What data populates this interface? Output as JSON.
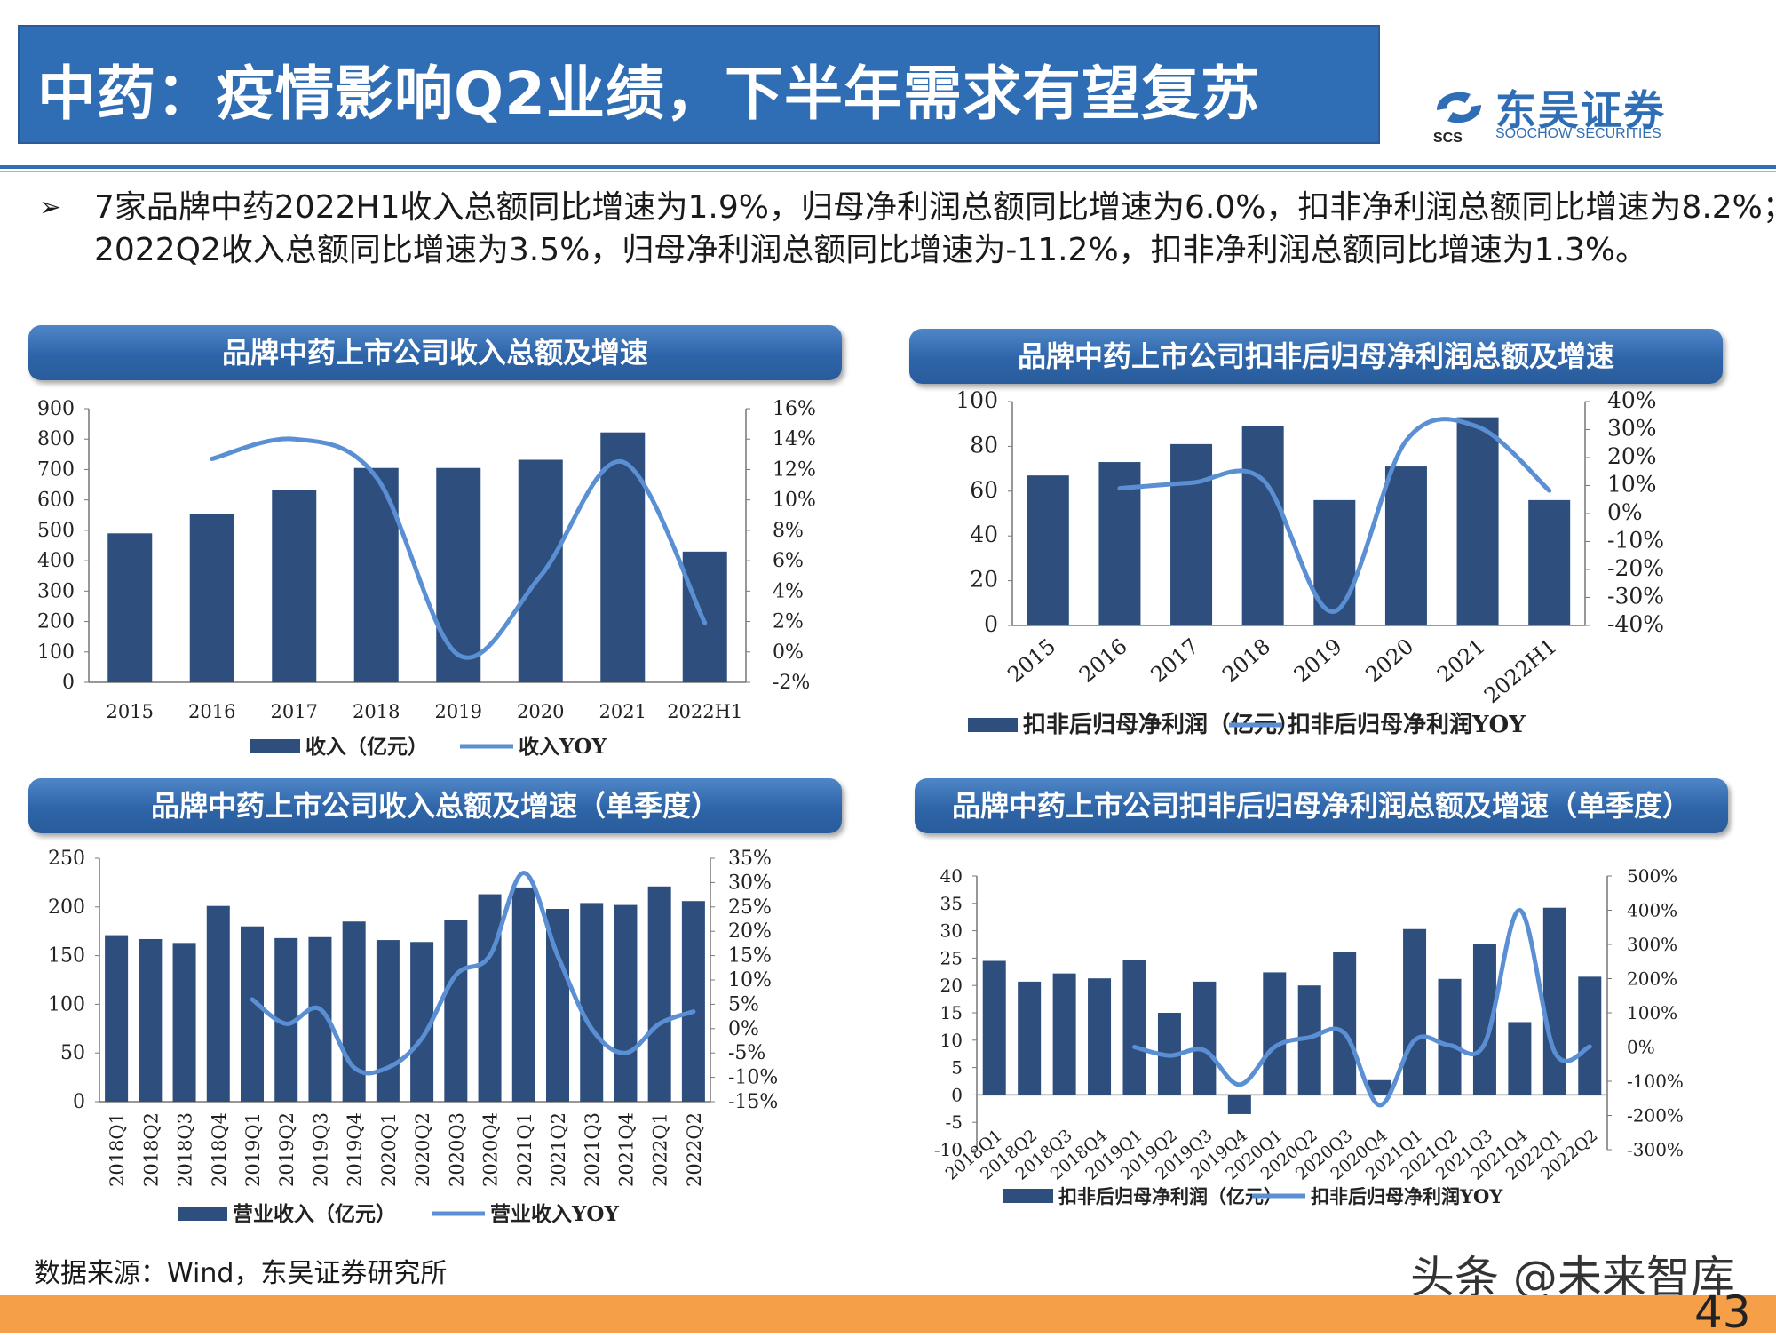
{
  "header": {
    "title": "中药：疫情影响Q2业绩，下半年需求有望复苏",
    "logo_cn": "东吴证券",
    "logo_en": "SOOCHOW SECURITIES",
    "logo_mark_text": "SCS"
  },
  "bullet": {
    "marker": "➢",
    "text": "7家品牌中药2022H1收入总额同比增速为1.9%，归母净利润总额同比增速为6.0%，扣非净利润总额同比增速为8.2%；2022Q2收入总额同比增速为3.5%，归母净利润总额同比增速为-11.2%，扣非净利润总额同比增速为1.3%。"
  },
  "panels": [
    {
      "title": "品牌中药上市公司收入总额及增速"
    },
    {
      "title": "品牌中药上市公司扣非后归母净利润总额及增速"
    },
    {
      "title": "品牌中药上市公司收入总额及增速（单季度）"
    },
    {
      "title": "品牌中药上市公司扣非后归母净利润总额及增速（单季度）"
    }
  ],
  "colors": {
    "bar": "#2e4e7e",
    "line": "#5b8fd3",
    "header": "#2f6db4",
    "footer": "#f5a049"
  },
  "chart_data": [
    {
      "type": "bar",
      "title": "品牌中药上市公司收入总额及增速",
      "categories": [
        "2015",
        "2016",
        "2017",
        "2018",
        "2019",
        "2020",
        "2021",
        "2022H1"
      ],
      "series": [
        {
          "name": "收入（亿元）",
          "type": "bar",
          "axis": "left",
          "values": [
            490,
            553,
            632,
            705,
            705,
            732,
            822,
            430
          ]
        },
        {
          "name": "收入YOY",
          "type": "line",
          "axis": "right",
          "values": [
            null,
            12.7,
            14.0,
            11.5,
            -0.2,
            5.0,
            12.5,
            1.9
          ]
        }
      ],
      "left_axis": {
        "min": 0,
        "max": 900,
        "ticks": [
          "0",
          "100",
          "200",
          "300",
          "400",
          "500",
          "600",
          "700",
          "800",
          "900"
        ]
      },
      "right_axis": {
        "min": -2,
        "max": 16,
        "ticks": [
          "-2%",
          "0%",
          "2%",
          "4%",
          "6%",
          "8%",
          "10%",
          "12%",
          "14%",
          "16%"
        ]
      },
      "legend": "bottom"
    },
    {
      "type": "bar",
      "title": "品牌中药上市公司扣非后归母净利润总额及增速",
      "categories": [
        "2015",
        "2016",
        "2017",
        "2018",
        "2019",
        "2020",
        "2021",
        "2022H1"
      ],
      "series": [
        {
          "name": "扣非后归母净利润（亿元）",
          "type": "bar",
          "axis": "left",
          "values": [
            67,
            73,
            81,
            89,
            56,
            71,
            93,
            56
          ]
        },
        {
          "name": "扣非后归母净利润YOY",
          "type": "line",
          "axis": "right",
          "values": [
            null,
            9,
            11,
            12,
            -35,
            26,
            31,
            8.2
          ]
        }
      ],
      "left_axis": {
        "min": 0,
        "max": 100,
        "ticks": [
          "0",
          "20",
          "40",
          "60",
          "80",
          "100"
        ]
      },
      "right_axis": {
        "min": -40,
        "max": 40,
        "ticks": [
          "-40%",
          "-30%",
          "-20%",
          "-10%",
          "0%",
          "10%",
          "20%",
          "30%",
          "40%"
        ]
      },
      "legend": "bottom"
    },
    {
      "type": "bar",
      "title": "品牌中药上市公司收入总额及增速（单季度）",
      "categories": [
        "2018Q1",
        "2018Q2",
        "2018Q3",
        "2018Q4",
        "2019Q1",
        "2019Q2",
        "2019Q3",
        "2019Q4",
        "2020Q1",
        "2020Q2",
        "2020Q3",
        "2020Q4",
        "2021Q1",
        "2021Q2",
        "2021Q3",
        "2021Q4",
        "2022Q1",
        "2022Q2"
      ],
      "series": [
        {
          "name": "营业收入（亿元）",
          "type": "bar",
          "axis": "left",
          "values": [
            171,
            167,
            163,
            201,
            180,
            168,
            169,
            185,
            166,
            164,
            187,
            213,
            220,
            198,
            204,
            202,
            221,
            206
          ]
        },
        {
          "name": "营业收入YOY",
          "type": "line",
          "axis": "right",
          "values": [
            null,
            null,
            null,
            null,
            6,
            1,
            4,
            -8,
            -8,
            -2,
            11,
            15,
            32,
            15,
            0,
            -5,
            1,
            3.5
          ]
        }
      ],
      "left_axis": {
        "min": 0,
        "max": 250,
        "ticks": [
          "0",
          "50",
          "100",
          "150",
          "200",
          "250"
        ]
      },
      "right_axis": {
        "min": -15,
        "max": 35,
        "ticks": [
          "-15%",
          "-10%",
          "-5%",
          "0%",
          "5%",
          "10%",
          "15%",
          "20%",
          "25%",
          "30%",
          "35%"
        ]
      },
      "legend": "bottom"
    },
    {
      "type": "bar",
      "title": "品牌中药上市公司扣非后归母净利润总额及增速（单季度）",
      "categories": [
        "2018Q1",
        "2018Q2",
        "2018Q3",
        "2018Q4",
        "2019Q1",
        "2019Q2",
        "2019Q3",
        "2019Q4",
        "2020Q1",
        "2020Q2",
        "2020Q3",
        "2020Q4",
        "2021Q1",
        "2021Q2",
        "2021Q3",
        "2021Q4",
        "2022Q1",
        "2022Q2"
      ],
      "series": [
        {
          "name": "扣非后归母净利润（亿元）",
          "type": "bar",
          "axis": "left",
          "values": [
            24.5,
            20.7,
            22.2,
            21.3,
            24.6,
            15.0,
            20.7,
            -3.5,
            22.4,
            20.0,
            26.2,
            2.7,
            30.3,
            21.2,
            27.5,
            13.3,
            34.2,
            21.6
          ]
        },
        {
          "name": "扣非后归母净利润YOY",
          "type": "line",
          "axis": "right",
          "values": [
            null,
            null,
            null,
            null,
            0,
            -25,
            -10,
            -110,
            0,
            28,
            40,
            -170,
            20,
            5,
            10,
            400,
            -15,
            1.3
          ]
        }
      ],
      "left_axis": {
        "min": -10,
        "max": 40,
        "ticks": [
          "-10",
          "-5",
          "0",
          "5",
          "10",
          "15",
          "20",
          "25",
          "30",
          "35",
          "40"
        ]
      },
      "right_axis": {
        "min": -300,
        "max": 500,
        "ticks": [
          "-300%",
          "-200%",
          "-100%",
          "0%",
          "100%",
          "200%",
          "300%",
          "400%",
          "500%"
        ]
      },
      "legend": "bottom"
    }
  ],
  "source": "数据来源：Wind，东吴证券研究所",
  "watermark": "头条 @未来智库",
  "page_number": "43"
}
